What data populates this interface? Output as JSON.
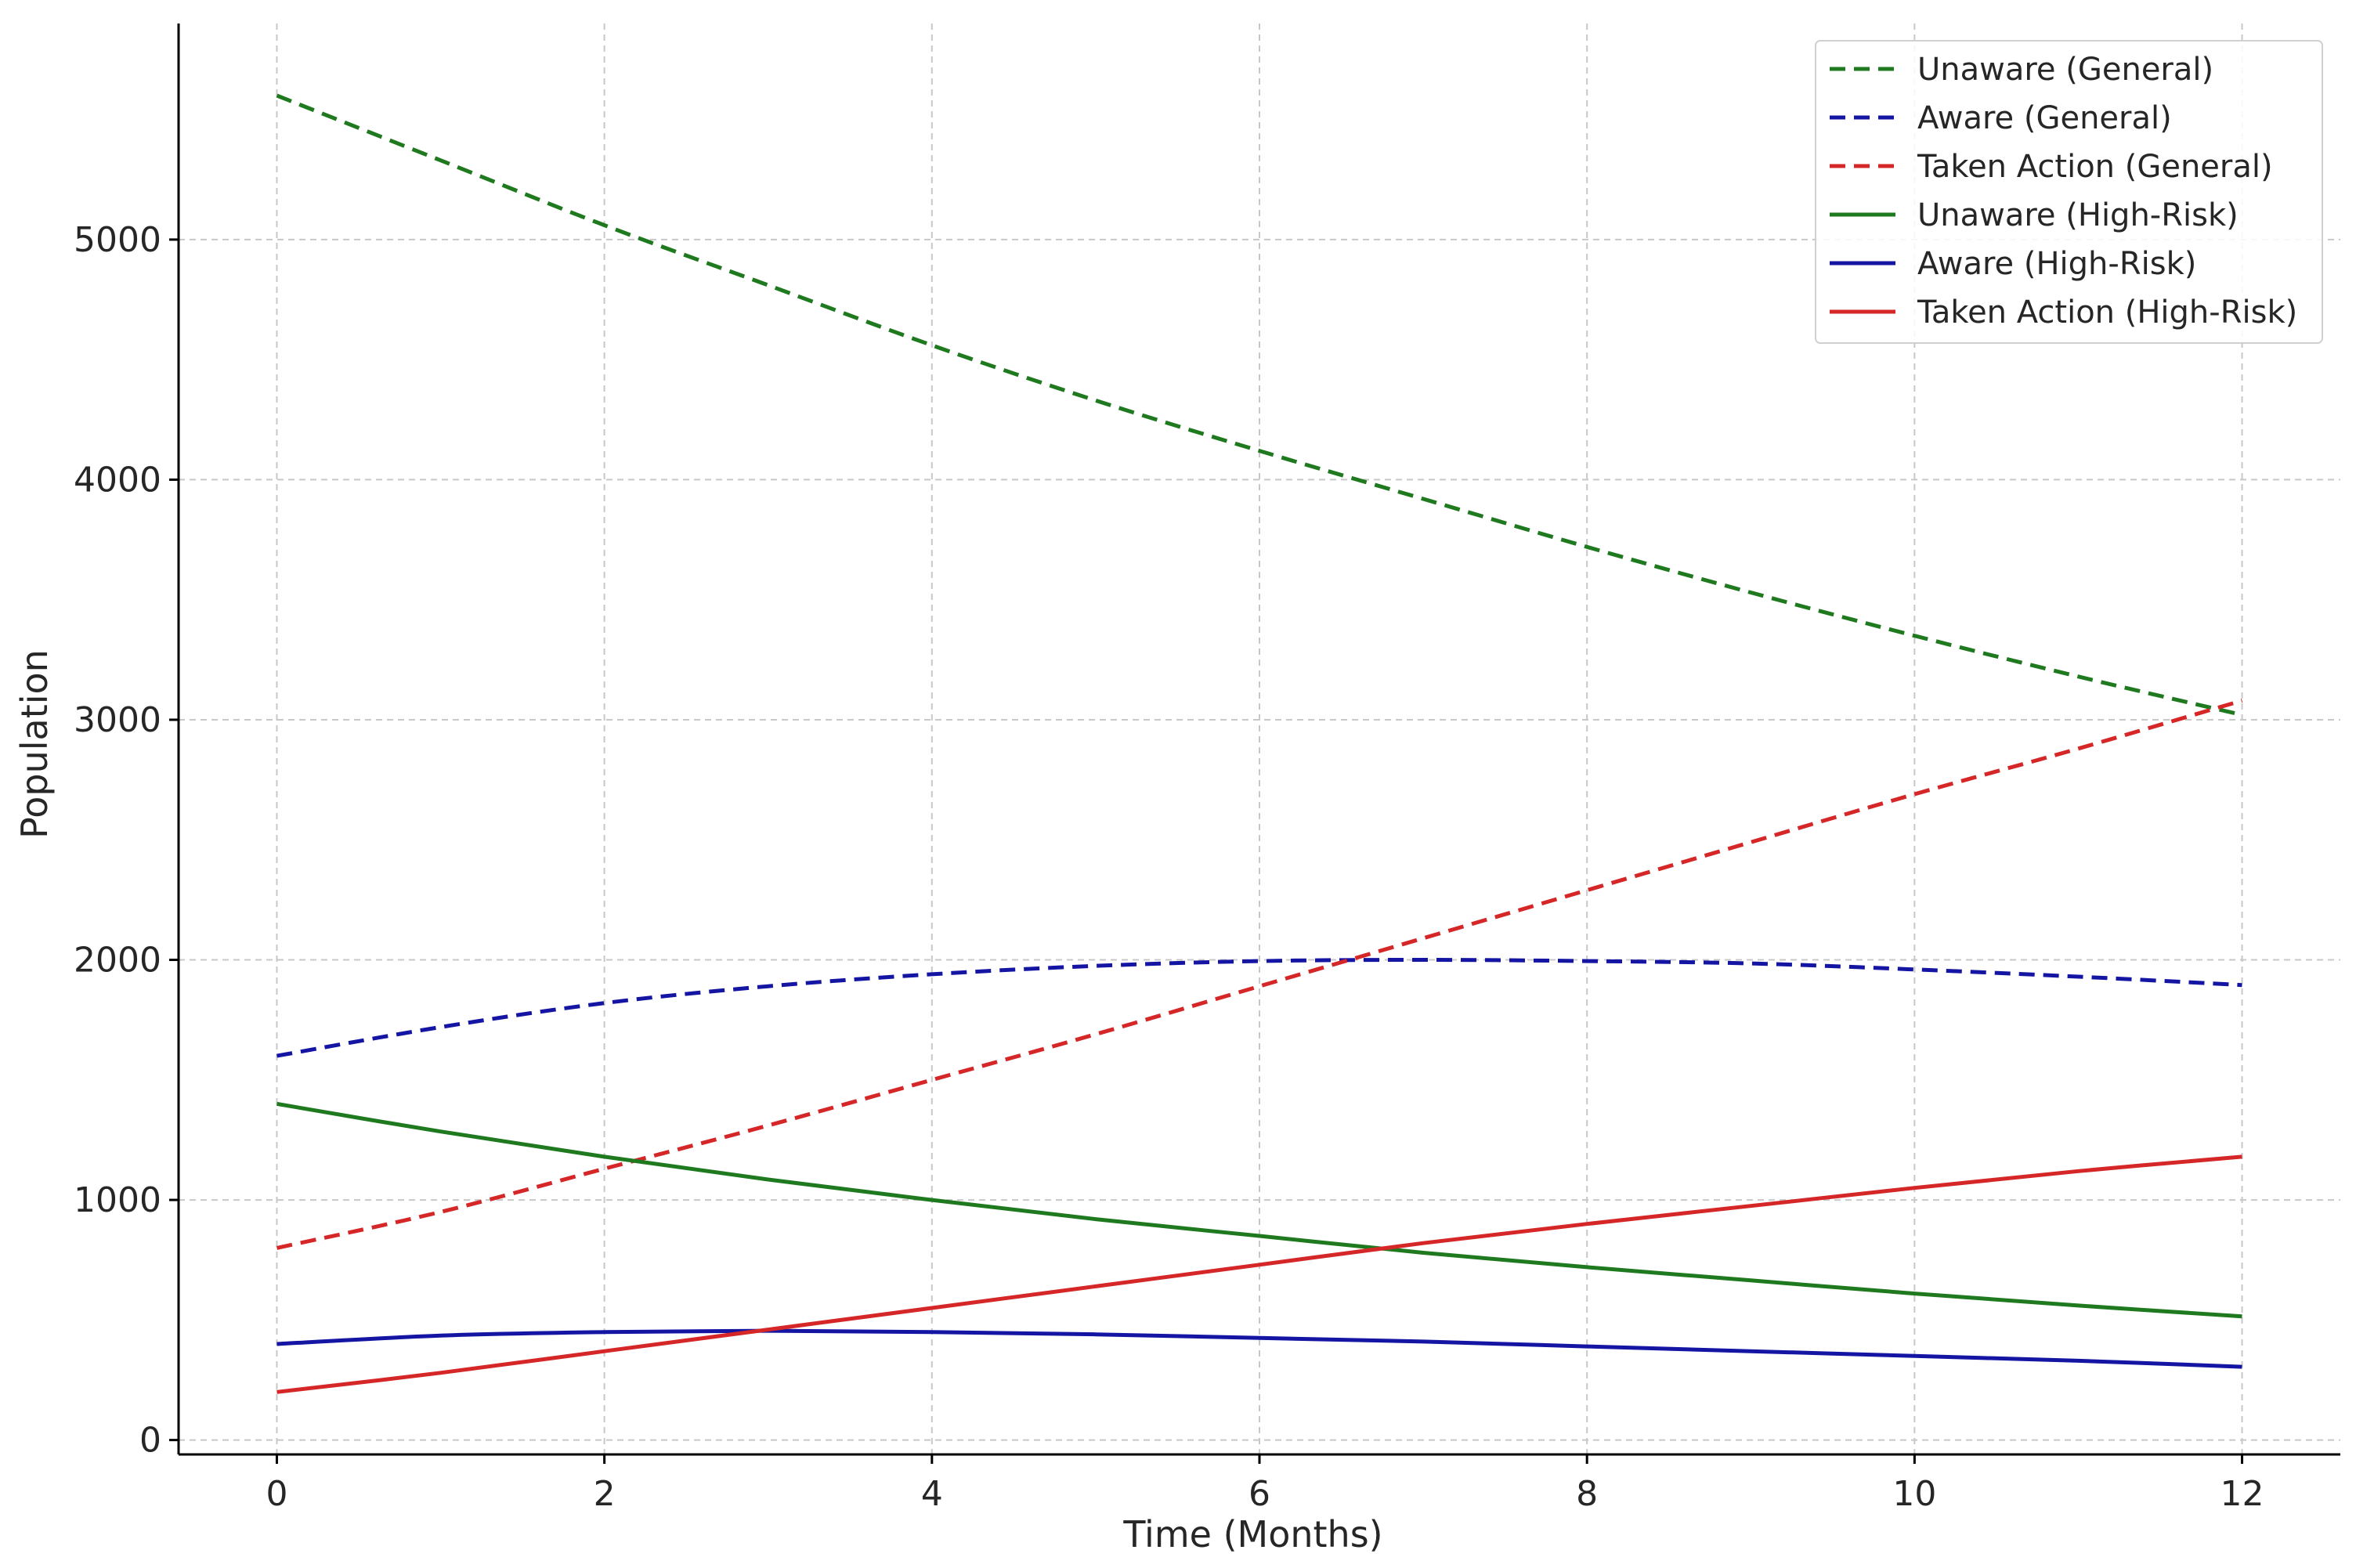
{
  "chart_data": {
    "type": "line",
    "title": "",
    "xlabel": "Time (Months)",
    "ylabel": "Population",
    "xlim": [
      -0.6,
      12.6
    ],
    "ylim": [
      -60,
      5900
    ],
    "xticks": [
      0,
      2,
      4,
      6,
      8,
      10,
      12
    ],
    "yticks": [
      0,
      1000,
      2000,
      3000,
      4000,
      5000
    ],
    "grid": true,
    "legend_position": "top-right",
    "x": [
      0,
      1,
      2,
      3,
      4,
      5,
      6,
      7,
      8,
      9,
      10,
      11,
      12
    ],
    "series": [
      {
        "name": "Unaware (General)",
        "color": "#1f7a1f",
        "style": "dashed",
        "values": [
          5600,
          5330,
          5060,
          4810,
          4560,
          4330,
          4120,
          3920,
          3720,
          3530,
          3350,
          3180,
          3020
        ]
      },
      {
        "name": "Aware (General)",
        "color": "#1515a3",
        "style": "dashed",
        "values": [
          1600,
          1720,
          1820,
          1890,
          1940,
          1975,
          1995,
          2000,
          1995,
          1985,
          1960,
          1930,
          1895
        ]
      },
      {
        "name": "Taken Action (General)",
        "color": "#d62728",
        "style": "dashed",
        "values": [
          800,
          950,
          1130,
          1310,
          1500,
          1690,
          1890,
          2090,
          2290,
          2490,
          2690,
          2880,
          3080
        ]
      },
      {
        "name": "Unaware (High-Risk)",
        "color": "#1f7a1f",
        "style": "solid",
        "values": [
          1400,
          1285,
          1180,
          1085,
          1000,
          920,
          850,
          780,
          720,
          665,
          610,
          560,
          515
        ]
      },
      {
        "name": "Aware (High-Risk)",
        "color": "#1515a3",
        "style": "solid",
        "values": [
          400,
          435,
          450,
          455,
          450,
          440,
          425,
          410,
          390,
          370,
          350,
          330,
          305
        ]
      },
      {
        "name": "Taken Action (High-Risk)",
        "color": "#d62728",
        "style": "solid",
        "values": [
          200,
          280,
          370,
          460,
          550,
          640,
          730,
          820,
          900,
          975,
          1050,
          1120,
          1180
        ]
      }
    ]
  }
}
